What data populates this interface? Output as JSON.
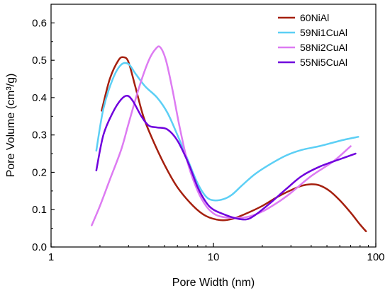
{
  "chart_data": {
    "type": "line",
    "title": "",
    "xlabel": "Pore Width (nm)",
    "ylabel": "Pore Volume (cm³/g)",
    "xscale": "log",
    "xlim": [
      1,
      100
    ],
    "ylim": [
      0.0,
      0.65
    ],
    "x_ticks": [
      1,
      10,
      100
    ],
    "x_tick_labels": [
      "1",
      "10",
      "100"
    ],
    "y_ticks": [
      0.0,
      0.1,
      0.2,
      0.3,
      0.4,
      0.5,
      0.6
    ],
    "y_tick_labels": [
      "0.0",
      "0.1",
      "0.2",
      "0.3",
      "0.4",
      "0.5",
      "0.6"
    ],
    "grid": false,
    "legend_position": "top-right",
    "series": [
      {
        "name": "60NiAl",
        "color": "#a5200f",
        "x": [
          2.05,
          2.3,
          2.6,
          2.8,
          3.0,
          3.3,
          3.7,
          4.2,
          5.0,
          6.0,
          7.5,
          9.0,
          11.0,
          13.0,
          16.0,
          20.0,
          25.0,
          30.0,
          35.0,
          40.0,
          45.0,
          52.0,
          60.0,
          70.0,
          80.0,
          87.0
        ],
        "y": [
          0.365,
          0.45,
          0.5,
          0.508,
          0.495,
          0.43,
          0.35,
          0.29,
          0.22,
          0.16,
          0.11,
          0.083,
          0.072,
          0.075,
          0.09,
          0.11,
          0.135,
          0.152,
          0.164,
          0.168,
          0.165,
          0.15,
          0.125,
          0.092,
          0.06,
          0.042
        ]
      },
      {
        "name": "59Ni1CuAl",
        "color": "#5ccff5",
        "x": [
          1.9,
          2.1,
          2.4,
          2.7,
          3.0,
          3.3,
          3.8,
          4.5,
          5.2,
          6.0,
          7.0,
          8.0,
          9.0,
          10.0,
          11.5,
          13.0,
          15.0,
          18.0,
          22.0,
          28.0,
          35.0,
          45.0,
          55.0,
          65.0,
          78.0
        ],
        "y": [
          0.258,
          0.37,
          0.45,
          0.488,
          0.49,
          0.465,
          0.43,
          0.4,
          0.36,
          0.3,
          0.23,
          0.17,
          0.135,
          0.125,
          0.128,
          0.14,
          0.165,
          0.195,
          0.22,
          0.245,
          0.26,
          0.27,
          0.28,
          0.288,
          0.295
        ]
      },
      {
        "name": "58Ni2CuAl",
        "color": "#dd7bf2",
        "x": [
          1.78,
          2.0,
          2.3,
          2.7,
          3.0,
          3.5,
          4.0,
          4.4,
          4.7,
          5.1,
          5.6,
          6.2,
          7.0,
          8.0,
          9.0,
          10.0,
          11.0,
          13.0,
          16.0,
          20.0,
          25.0,
          30.0,
          40.0,
          55.0,
          70.0
        ],
        "y": [
          0.058,
          0.11,
          0.18,
          0.26,
          0.33,
          0.43,
          0.5,
          0.53,
          0.535,
          0.5,
          0.42,
          0.32,
          0.22,
          0.15,
          0.11,
          0.09,
          0.082,
          0.078,
          0.08,
          0.095,
          0.12,
          0.145,
          0.19,
          0.23,
          0.27
        ]
      },
      {
        "name": "55Ni5CuAl",
        "color": "#7000dd",
        "x": [
          1.9,
          2.1,
          2.4,
          2.7,
          2.95,
          3.2,
          3.6,
          4.0,
          4.5,
          5.2,
          6.0,
          7.0,
          8.0,
          9.0,
          10.0,
          12.0,
          14.0,
          16.0,
          18.0,
          22.0,
          28.0,
          35.0,
          45.0,
          60.0,
          75.0
        ],
        "y": [
          0.205,
          0.3,
          0.36,
          0.395,
          0.405,
          0.39,
          0.35,
          0.325,
          0.32,
          0.315,
          0.285,
          0.225,
          0.16,
          0.12,
          0.1,
          0.085,
          0.076,
          0.074,
          0.085,
          0.115,
          0.155,
          0.19,
          0.215,
          0.235,
          0.25
        ]
      }
    ]
  }
}
